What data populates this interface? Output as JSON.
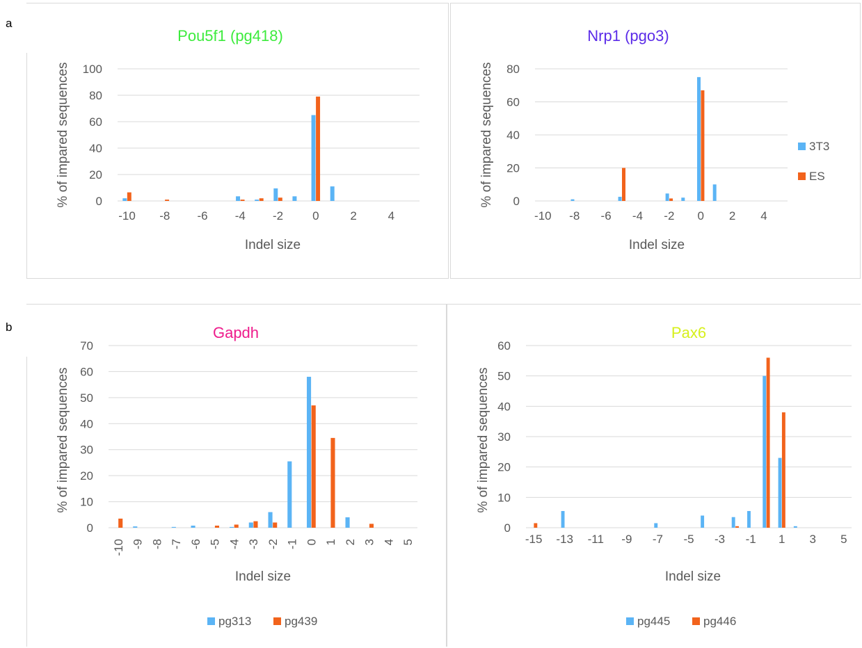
{
  "panels": [
    {
      "letter": "a"
    },
    {
      "letter": "b"
    }
  ],
  "colors": {
    "series1": "#5BB4F5",
    "series2": "#F2631C",
    "grid": "#D9D9D9",
    "axis_text": "#595959"
  },
  "chart_data": [
    {
      "id": "pou5f1",
      "type": "bar",
      "title": "Pou5f1 (pg418)",
      "title_color": "#3DEB3D",
      "xlabel": "Indel size",
      "ylabel": "% of impared sequences",
      "x": [
        -10,
        -9,
        -8,
        -7,
        -6,
        -5,
        -4,
        -3,
        -2,
        -1,
        0,
        1,
        2,
        3,
        4,
        5
      ],
      "xticks": [
        -10,
        -8,
        -6,
        -4,
        -2,
        0,
        2,
        4
      ],
      "xtick_labels": [
        "-10",
        "-8",
        "-6",
        "-4",
        "-2",
        "0",
        "2",
        "4"
      ],
      "yticks": [
        0,
        20,
        40,
        60,
        80,
        100
      ],
      "ylim": [
        0,
        100
      ],
      "grid": true,
      "legend": "none",
      "series": [
        {
          "name": "3T3",
          "values": [
            2,
            0,
            0,
            0,
            0,
            0,
            3.5,
            1,
            9.5,
            3.5,
            65,
            11,
            0,
            0,
            0,
            0
          ]
        },
        {
          "name": "ES",
          "values": [
            6.5,
            0,
            1,
            0,
            0,
            0,
            1,
            2,
            2.5,
            0,
            79,
            0,
            0,
            0,
            0,
            0
          ]
        }
      ]
    },
    {
      "id": "nrp1",
      "type": "bar",
      "title": "Nrp1 (pgo3)",
      "title_color": "#5B2BE8",
      "xlabel": "Indel size",
      "ylabel": "% of impared sequences",
      "x": [
        -10,
        -9,
        -8,
        -7,
        -6,
        -5,
        -4,
        -3,
        -2,
        -1,
        0,
        1,
        2,
        3,
        4,
        5
      ],
      "xticks": [
        -10,
        -8,
        -6,
        -4,
        -2,
        0,
        2,
        4
      ],
      "xtick_labels": [
        "-10",
        "-8",
        "-6",
        "-4",
        "-2",
        "0",
        "2",
        "4"
      ],
      "yticks": [
        0,
        20,
        40,
        60,
        80
      ],
      "ylim": [
        0,
        80
      ],
      "grid": true,
      "legend": "right",
      "series": [
        {
          "name": "3T3",
          "values": [
            0,
            0,
            1,
            0,
            0,
            2.5,
            0,
            0,
            4.5,
            2,
            75,
            10,
            0,
            0,
            0,
            0
          ]
        },
        {
          "name": "ES",
          "values": [
            0,
            0,
            0,
            0,
            0,
            20,
            0,
            0,
            1.5,
            0,
            67,
            0,
            0,
            0,
            0,
            0
          ]
        }
      ]
    },
    {
      "id": "gapdh",
      "type": "bar",
      "title": "Gapdh",
      "title_color": "#EE1C8C",
      "xlabel": "Indel size",
      "ylabel": "% of impared sequences",
      "x": [
        -10,
        -9,
        -8,
        -7,
        -6,
        -5,
        -4,
        -3,
        -2,
        -1,
        0,
        1,
        2,
        3,
        4,
        5
      ],
      "xticks": [
        -10,
        -9,
        -8,
        -7,
        -6,
        -5,
        -4,
        -3,
        -2,
        -1,
        0,
        1,
        2,
        3,
        4,
        5
      ],
      "xtick_labels": [
        "-10",
        "-9",
        "-8",
        "-7",
        "-6",
        "-5",
        "-4",
        "-3",
        "-2",
        "-1",
        "0",
        "1",
        "2",
        "3",
        "4",
        "5"
      ],
      "xtick_rotate": true,
      "yticks": [
        0,
        10,
        20,
        30,
        40,
        50,
        60,
        70
      ],
      "ylim": [
        0,
        70
      ],
      "grid": true,
      "legend": "bottom",
      "series": [
        {
          "name": "pg313",
          "values": [
            0,
            0.5,
            0,
            0.3,
            0.8,
            0,
            0.3,
            2,
            6,
            25.5,
            58,
            0,
            4,
            0,
            0,
            0
          ]
        },
        {
          "name": "pg439",
          "values": [
            3.5,
            0,
            0,
            0,
            0,
            0.8,
            1.2,
            2.5,
            2,
            0,
            47,
            34.5,
            0,
            1.5,
            0,
            0
          ]
        }
      ]
    },
    {
      "id": "pax6",
      "type": "bar",
      "title": "Pax6",
      "title_color": "#D7F01C",
      "xlabel": "Indel size",
      "ylabel": "% of impared sequences",
      "x": [
        -15,
        -14,
        -13,
        -12,
        -11,
        -10,
        -9,
        -8,
        -7,
        -6,
        -5,
        -4,
        -3,
        -2,
        -1,
        0,
        1,
        2,
        3,
        4,
        5
      ],
      "xticks": [
        -15,
        -13,
        -11,
        -9,
        -7,
        -5,
        -3,
        -1,
        1,
        3,
        5
      ],
      "xtick_labels": [
        "-15",
        "-13",
        "-11",
        "-9",
        "-7",
        "-5",
        "-3",
        "-1",
        "1",
        "3",
        "5"
      ],
      "yticks": [
        0,
        10,
        20,
        30,
        40,
        50,
        60
      ],
      "ylim": [
        0,
        60
      ],
      "grid": true,
      "legend": "bottom",
      "series": [
        {
          "name": "pg445",
          "values": [
            0,
            0,
            5.5,
            0,
            0,
            0,
            0,
            0,
            1.5,
            0,
            0,
            4,
            0,
            3.5,
            5.5,
            50,
            23,
            0.5,
            0,
            0,
            0
          ]
        },
        {
          "name": "pg446",
          "values": [
            1.5,
            0,
            0,
            0,
            0,
            0,
            0,
            0,
            0,
            0,
            0,
            0,
            0,
            0.5,
            0,
            56,
            38,
            0,
            0,
            0,
            0
          ]
        }
      ]
    }
  ]
}
